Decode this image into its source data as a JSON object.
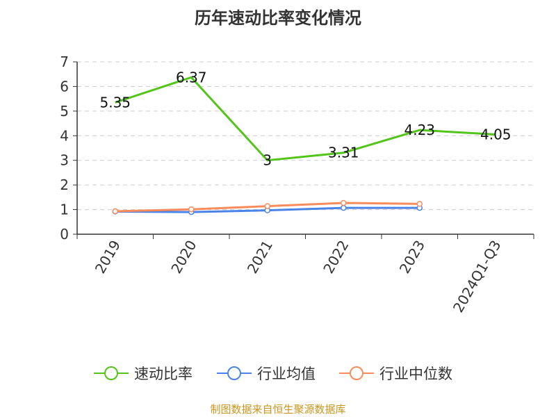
{
  "chart_data": {
    "type": "line",
    "title": "历年速动比率变化情况",
    "categories": [
      "2019",
      "2020",
      "2021",
      "2022",
      "2023",
      "2024Q1-Q3"
    ],
    "ylim": [
      0,
      7
    ],
    "yticks": [
      0,
      1,
      2,
      3,
      4,
      5,
      6,
      7
    ],
    "grid": true,
    "legend_placement": "bottom",
    "series": [
      {
        "name": "速动比率",
        "color": "#52c41a",
        "values": [
          5.35,
          6.37,
          3,
          3.31,
          4.23,
          4.05
        ],
        "labels": [
          "5.35",
          "6.37",
          "3",
          "3.31",
          "4.23",
          "4.05"
        ]
      },
      {
        "name": "行业均值",
        "color": "#4a84e8",
        "values": [
          0.92,
          0.9,
          0.97,
          1.07,
          1.07,
          null
        ]
      },
      {
        "name": "行业中位数",
        "color": "#f98c5c",
        "values": [
          0.93,
          1.01,
          1.14,
          1.27,
          1.23,
          null
        ]
      }
    ]
  },
  "source": "制图数据来自恒生聚源数据库"
}
